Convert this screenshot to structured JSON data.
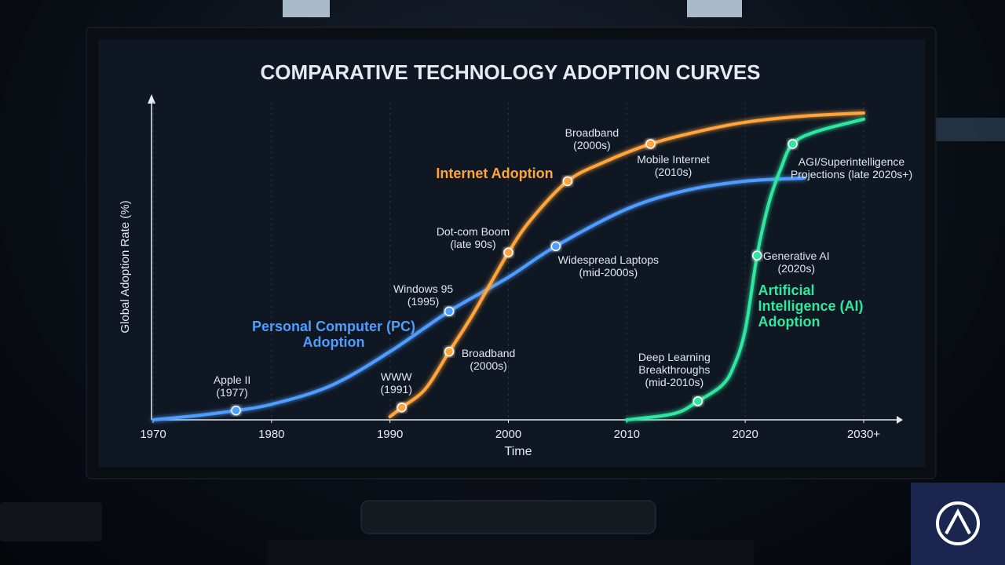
{
  "chart_data": {
    "type": "line",
    "title": "COMPARATIVE TECHNOLOGY ADOPTION CURVES",
    "x_label": "Time",
    "y_label": "Global Adoption Rate (%)",
    "xlim": [
      1970,
      2030
    ],
    "ylim": [
      0,
      100
    ],
    "xticks": [
      1970,
      1980,
      1990,
      2000,
      2010,
      2020,
      {
        "value": 2030,
        "label": "2030+"
      }
    ],
    "grid": true,
    "series": [
      {
        "name": "Personal Computer (PC) Adoption",
        "color": "#4f9dff",
        "x": [
          1970,
          1974,
          1977,
          1980,
          1985,
          1990,
          1995,
          2000,
          2004,
          2010,
          2015,
          2020,
          2025
        ],
        "values": [
          0,
          1.5,
          3,
          5,
          11,
          22,
          35,
          46,
          56,
          68,
          74,
          77,
          78
        ]
      },
      {
        "name": "Internet Adoption",
        "color": "#ffa53a",
        "x": [
          1990,
          1991,
          1993,
          1995,
          1997,
          2000,
          2002,
          2005,
          2008,
          2012,
          2016,
          2020,
          2025,
          2030
        ],
        "values": [
          1,
          4,
          10,
          22,
          34,
          54,
          65,
          77,
          83,
          89,
          93,
          96,
          98,
          99
        ]
      },
      {
        "name": "Artificial Intelligence (AI) Adoption",
        "color": "#2ee8a0",
        "x": [
          2010,
          2014,
          2016,
          2018,
          2019,
          2020,
          2021,
          2022,
          2023,
          2024,
          2026,
          2030
        ],
        "values": [
          0,
          2,
          6,
          11,
          17,
          29,
          53,
          70,
          81,
          89,
          93,
          97
        ]
      }
    ],
    "annotations": [
      {
        "text": "Apple II (1977)",
        "x": 1977,
        "y": 3
      },
      {
        "text": "Windows 95 (1995)",
        "x": 1995,
        "y": 35
      },
      {
        "text": "Widespread Laptops (mid-2000s)",
        "x": 2004,
        "y": 56
      },
      {
        "text": "WWW (1991)",
        "x": 1991,
        "y": 4
      },
      {
        "text": "Broadband (2000s)",
        "x": 1995,
        "y": 22
      },
      {
        "text": "Dot-com Boom (late 90s)",
        "x": 2000,
        "y": 54
      },
      {
        "text": "Broadband (2000s)",
        "x": 2005,
        "y": 77
      },
      {
        "text": "Mobile Internet (2010s)",
        "x": 2012,
        "y": 89
      },
      {
        "text": "Deep Learning Breakthroughs (mid-2010s)",
        "x": 2016,
        "y": 6
      },
      {
        "text": "Generative AI (2020s)",
        "x": 2021,
        "y": 53
      },
      {
        "text": "AGI/Superintelligence Projections (late 2020s+)",
        "x": 2024,
        "y": 89
      }
    ]
  }
}
